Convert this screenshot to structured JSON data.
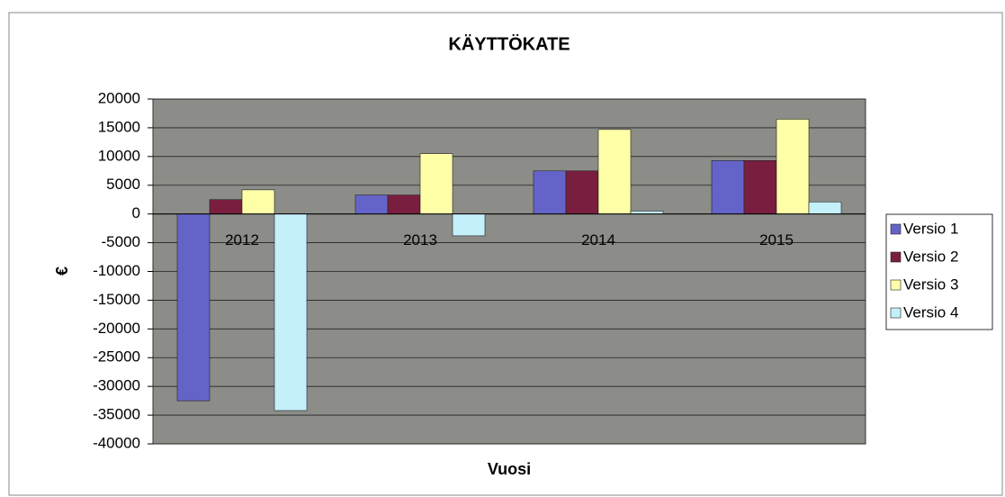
{
  "chart_data": {
    "type": "bar",
    "title": "KÄYTTÖKATE",
    "xlabel": "Vuosi",
    "ylabel": "€",
    "categories": [
      "2012",
      "2013",
      "2014",
      "2015"
    ],
    "series": [
      {
        "name": "Versio 1",
        "color": "#6464c8",
        "values": [
          -32500,
          3300,
          7500,
          9300
        ]
      },
      {
        "name": "Versio 2",
        "color": "#7a1e40",
        "values": [
          2500,
          3300,
          7500,
          9300
        ]
      },
      {
        "name": "Versio 3",
        "color": "#ffffa8",
        "values": [
          4200,
          10500,
          14700,
          16500
        ]
      },
      {
        "name": "Versio 4",
        "color": "#c4f0fa",
        "values": [
          -34200,
          -3800,
          500,
          2100
        ]
      }
    ],
    "ylim": [
      -40000,
      20000
    ],
    "yticks": [
      -40000,
      -35000,
      -30000,
      -25000,
      -20000,
      -15000,
      -10000,
      -5000,
      0,
      5000,
      10000,
      15000,
      20000
    ],
    "grid": true,
    "legend": "right"
  }
}
